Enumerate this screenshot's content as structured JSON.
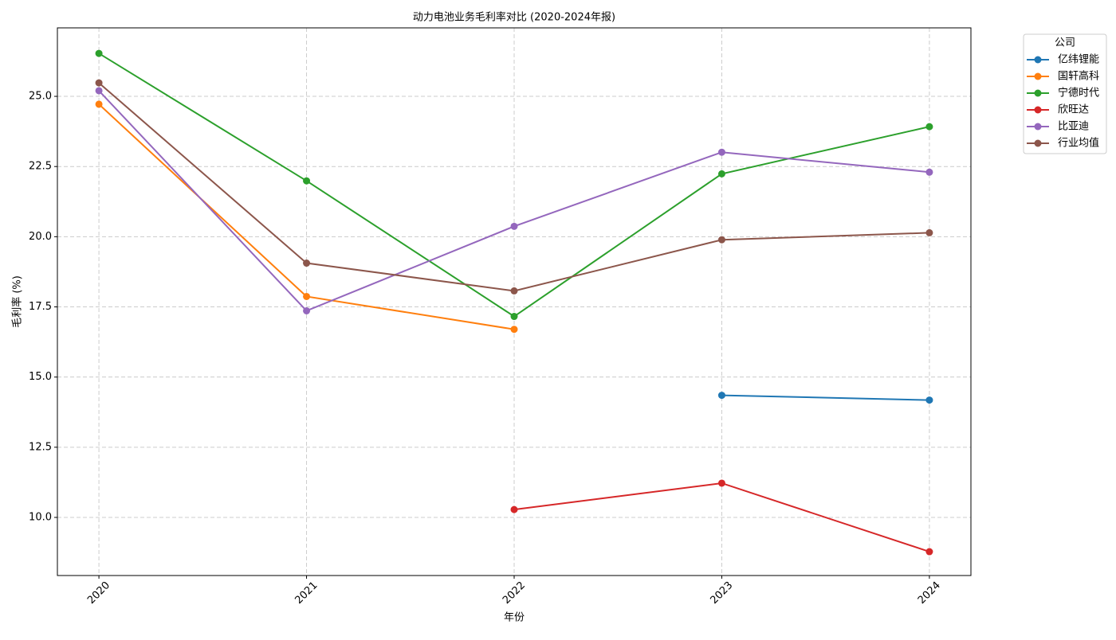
{
  "chart_data": {
    "type": "line",
    "title": "动力电池业务毛利率对比 (2020-2024年报)",
    "x_label": "年份",
    "y_label": "毛利率 (%)",
    "legend_title": "公司",
    "x": [
      2020,
      2021,
      2022,
      2023,
      2024
    ],
    "xlim": [
      2019.8,
      2024.2
    ],
    "xticks": [
      2020,
      2021,
      2022,
      2023,
      2024
    ],
    "ylim": [
      7.93,
      27.44
    ],
    "yticks": [
      {
        "value": 10,
        "label": "10.0"
      },
      {
        "value": 12.5,
        "label": "12.5"
      },
      {
        "value": 15,
        "label": "15.0"
      },
      {
        "value": 17.5,
        "label": "17.5"
      },
      {
        "value": 20,
        "label": "20.0"
      },
      {
        "value": 22.5,
        "label": "22.5"
      },
      {
        "value": 25,
        "label": "25.0"
      }
    ],
    "grid": true,
    "legend_position": "outside-upper-right",
    "series": [
      {
        "name": "亿纬锂能",
        "color": "#1f77b4",
        "values": [
          null,
          null,
          null,
          14.35,
          14.18
        ]
      },
      {
        "name": "国轩高科",
        "color": "#ff7f0e",
        "values": [
          24.72,
          17.87,
          16.7,
          null,
          null
        ]
      },
      {
        "name": "宁德时代",
        "color": "#2ca02c",
        "values": [
          26.53,
          21.99,
          17.16,
          22.24,
          23.92
        ]
      },
      {
        "name": "欣旺达",
        "color": "#d62728",
        "values": [
          null,
          null,
          10.28,
          11.22,
          8.78
        ]
      },
      {
        "name": "比亚迪",
        "color": "#9467bd",
        "values": [
          25.2,
          17.36,
          20.37,
          23.01,
          22.3
        ]
      },
      {
        "name": "行业均值",
        "color": "#8c564b",
        "values": [
          25.48,
          19.06,
          18.07,
          19.89,
          20.14
        ]
      }
    ]
  }
}
